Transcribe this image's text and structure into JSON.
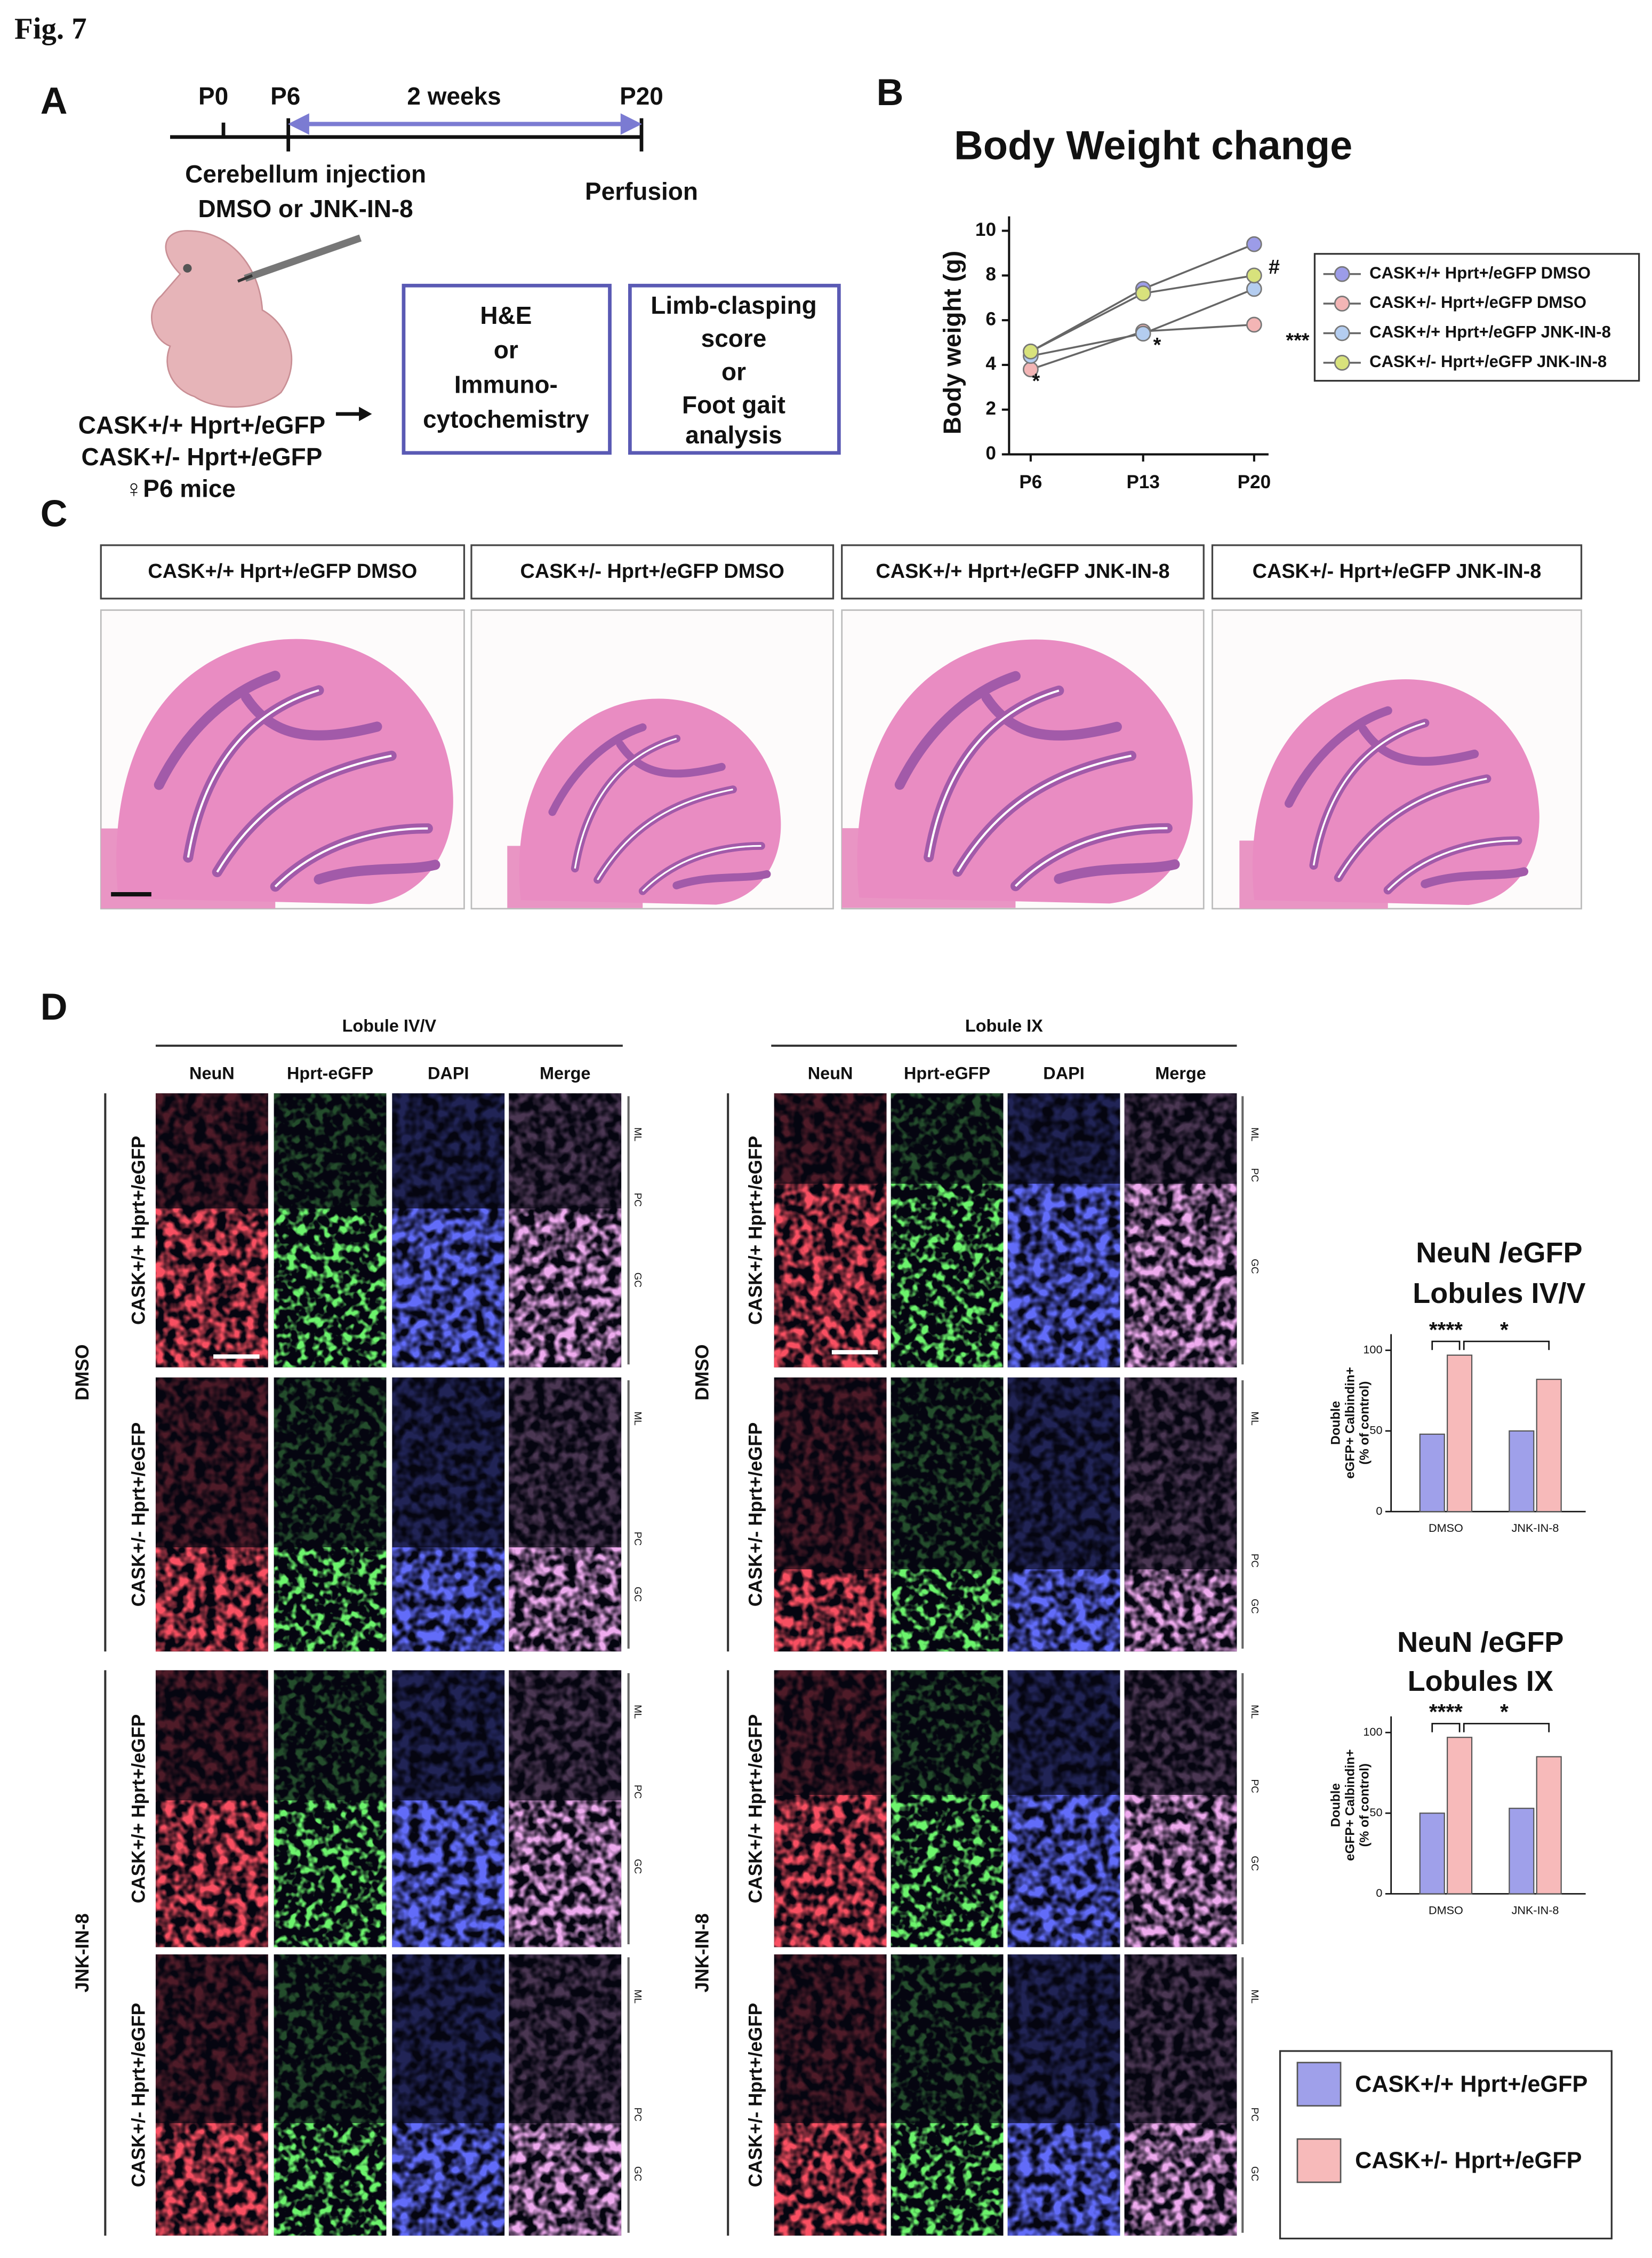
{
  "figure_label": "Fig. 7",
  "panel_a": {
    "label": "A",
    "timeline": [
      "P0",
      "P6",
      "2 weeks",
      "P20"
    ],
    "injection": [
      "Cerebellum injection",
      "DMSO or JNK-IN-8"
    ],
    "perfusion": "Perfusion",
    "box1": [
      "H&E",
      "or",
      "Immuno-",
      "cytochemistry"
    ],
    "box2": [
      "Limb-clasping",
      "score",
      "or",
      "Foot gait",
      "analysis"
    ],
    "mice": [
      "CASK+/+ Hprt+/eGFP",
      "CASK+/- Hprt+/eGFP",
      "♀P6 mice"
    ]
  },
  "panel_b_label": "B",
  "panel_c": {
    "label": "C",
    "groups": [
      "CASK+/+ Hprt+/eGFP DMSO",
      "CASK+/- Hprt+/eGFP DMSO",
      "CASK+/+ Hprt+/eGFP JNK-IN-8",
      "CASK+/- Hprt+/eGFP JNK-IN-8"
    ]
  },
  "panel_d": {
    "label": "D",
    "lobules": [
      "Lobule IV/V",
      "Lobule IX"
    ],
    "channels": [
      "NeuN",
      "Hprt-eGFP",
      "DAPI",
      "Merge"
    ],
    "treatments": [
      "DMSO",
      "JNK-IN-8"
    ],
    "genotypes": [
      "CASK+/+ Hprt+/eGFP",
      "CASK+/- Hprt+/eGFP"
    ],
    "layers": [
      "ML",
      "PC",
      "GC"
    ]
  },
  "chart_data": [
    {
      "type": "line",
      "title": "Body Weight change",
      "ylabel": "Body weight (g)",
      "categories": [
        "P6",
        "P13",
        "P20"
      ],
      "ylim": [
        0,
        10
      ],
      "yticks": [
        0,
        2,
        4,
        6,
        8,
        10
      ],
      "series": [
        {
          "name": "CASK+/+ Hprt+/eGFP DMSO",
          "color": "#9c9ce8",
          "values": [
            4.6,
            7.4,
            9.4
          ]
        },
        {
          "name": "CASK+/- Hprt+/eGFP DMSO",
          "color": "#f3b5b5",
          "values": [
            3.8,
            5.5,
            5.8
          ]
        },
        {
          "name": "CASK+/+ Hprt+/eGFP JNK-IN-8",
          "color": "#b4cdf0",
          "values": [
            4.4,
            5.4,
            7.4
          ]
        },
        {
          "name": "CASK+/- Hprt+/eGFP JNK-IN-8",
          "color": "#d8e27c",
          "values": [
            4.6,
            7.2,
            8.0
          ]
        }
      ],
      "annotations": [
        "#",
        "***",
        "*",
        "*"
      ]
    },
    {
      "type": "bar",
      "title": "NeuN /eGFP",
      "subtitle": "Lobules IV/V",
      "ylabel": [
        "Double",
        "eGFP+ Calbindin+",
        "(% of control)"
      ],
      "categories": [
        "DMSO",
        "JNK-IN-8"
      ],
      "ylim": [
        0,
        110
      ],
      "yticks": [
        0,
        50,
        100
      ],
      "series": [
        {
          "name": "CASK+/+ Hprt+/eGFP",
          "color": "#9fa0ea",
          "values": [
            48,
            50
          ]
        },
        {
          "name": "CASK+/- Hprt+/eGFP",
          "color": "#f7baba",
          "values": [
            97,
            82
          ]
        }
      ],
      "annotations": [
        "****",
        "*"
      ]
    },
    {
      "type": "bar",
      "title": "NeuN /eGFP",
      "subtitle": "Lobules IX",
      "ylabel": [
        "Double",
        "eGFP+ Calbindin+",
        "(% of control)"
      ],
      "categories": [
        "DMSO",
        "JNK-IN-8"
      ],
      "ylim": [
        0,
        110
      ],
      "yticks": [
        0,
        50,
        100
      ],
      "series": [
        {
          "color": "#9fa0ea",
          "values": [
            50,
            53
          ]
        },
        {
          "color": "#f7baba",
          "values": [
            97,
            85
          ]
        }
      ],
      "annotations": [
        "****",
        "*"
      ]
    }
  ]
}
